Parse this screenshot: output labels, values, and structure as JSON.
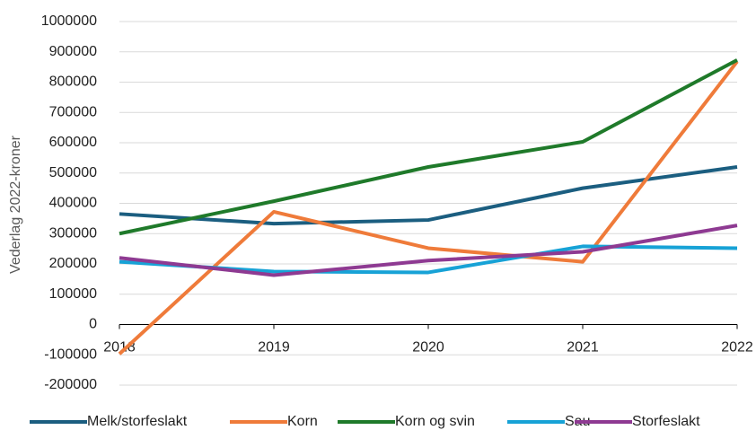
{
  "chart_data": {
    "type": "line",
    "y_label": "Vederlag 2022-kroner",
    "categories": [
      "2018",
      "2019",
      "2020",
      "2021",
      "2022"
    ],
    "series": [
      {
        "name": "Melk/storfeslakt",
        "color": "#1b5e80",
        "values": [
          365000,
          333000,
          345000,
          450000,
          520000
        ]
      },
      {
        "name": "Korn",
        "color": "#ef7b3a",
        "values": [
          -97000,
          372000,
          252000,
          207000,
          868000
        ]
      },
      {
        "name": "Korn og svin",
        "color": "#1f7a2a",
        "values": [
          300000,
          407000,
          520000,
          603000,
          873000
        ]
      },
      {
        "name": "Sau",
        "color": "#17a2d6",
        "values": [
          207000,
          175000,
          172000,
          258000,
          252000
        ]
      },
      {
        "name": "Storfeslakt",
        "color": "#8e3a92",
        "values": [
          220000,
          163000,
          211000,
          240000,
          327000
        ]
      }
    ],
    "ylim": [
      -200000,
      1000000
    ],
    "yticks": [
      -200000,
      -100000,
      0,
      100000,
      200000,
      300000,
      400000,
      500000,
      600000,
      700000,
      800000,
      900000,
      1000000
    ],
    "grid": true
  }
}
